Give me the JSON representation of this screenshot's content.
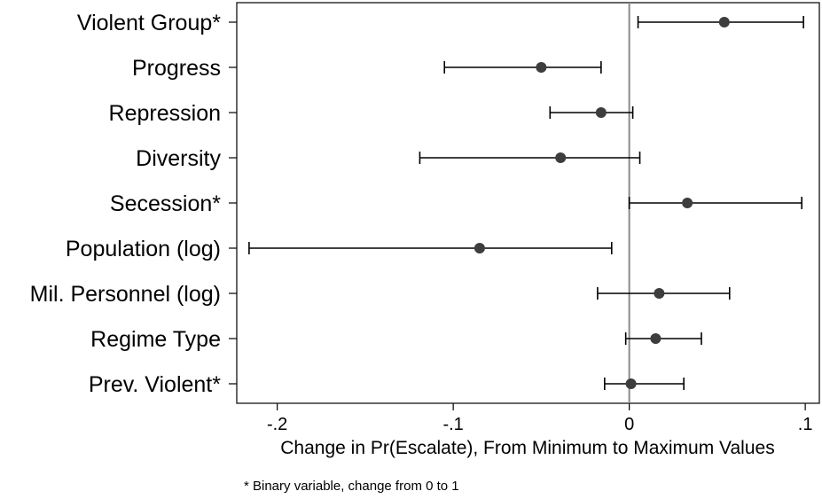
{
  "chart_data": {
    "type": "scatter",
    "subtype": "coefficient-plot-with-error-bars",
    "title": "",
    "xlabel": "Change in Pr(Escalate), From Minimum to Maximum Values",
    "ylabel": "",
    "xlim": [
      -0.223,
      0.108
    ],
    "xticks": [
      -0.2,
      -0.1,
      0,
      0.1
    ],
    "xtick_labels": [
      "-.2",
      "-.1",
      "0",
      ".1"
    ],
    "reference_line_x": 0,
    "grid": false,
    "marker_color": "#3d3d3d",
    "reference_line_color": "#8a8a8a",
    "note": "* Binary variable, change from 0 to 1",
    "variables": [
      {
        "label": "Violent Group*",
        "estimate": 0.054,
        "lower": 0.005,
        "upper": 0.099
      },
      {
        "label": "Progress",
        "estimate": -0.05,
        "lower": -0.105,
        "upper": -0.016
      },
      {
        "label": "Repression",
        "estimate": -0.016,
        "lower": -0.045,
        "upper": 0.002
      },
      {
        "label": "Diversity",
        "estimate": -0.039,
        "lower": -0.119,
        "upper": 0.006
      },
      {
        "label": "Secession*",
        "estimate": 0.033,
        "lower": 0.0,
        "upper": 0.098
      },
      {
        "label": "Population (log)",
        "estimate": -0.085,
        "lower": -0.216,
        "upper": -0.01
      },
      {
        "label": "Mil. Personnel (log)",
        "estimate": 0.017,
        "lower": -0.018,
        "upper": 0.057
      },
      {
        "label": "Regime Type",
        "estimate": 0.015,
        "lower": -0.002,
        "upper": 0.041
      },
      {
        "label": "Prev. Violent*",
        "estimate": 0.001,
        "lower": -0.014,
        "upper": 0.031
      }
    ]
  }
}
